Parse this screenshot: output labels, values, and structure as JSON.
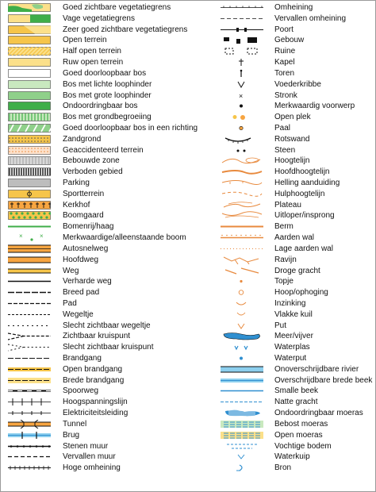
{
  "left_items": [
    {
      "label": "Goed zichtbare vegetatiegrens",
      "symbol": "veg-border-good-icon"
    },
    {
      "label": "Vage vegetatiegrens",
      "symbol": "veg-border-vague-icon"
    },
    {
      "label": "Zeer goed zichtbare vegetatiegrens",
      "symbol": "veg-border-very-good-icon"
    },
    {
      "label": "Open terrein",
      "symbol": "open-terrain-icon"
    },
    {
      "label": "Half open terrein",
      "symbol": "half-open-terrain-icon"
    },
    {
      "label": "Ruw open terrein",
      "symbol": "rough-open-terrain-icon"
    },
    {
      "label": "Goed doorloopbaar bos",
      "symbol": "runnable-forest-icon"
    },
    {
      "label": "Bos met lichte loophinder",
      "symbol": "forest-slow-running-icon"
    },
    {
      "label": "Bos met grote loophinder",
      "symbol": "forest-difficult-icon"
    },
    {
      "label": "Ondoordringbaar bos",
      "symbol": "impassable-forest-icon"
    },
    {
      "label": "Bos met grondbegroeiing",
      "symbol": "undergrowth-icon"
    },
    {
      "label": "Goed doorloopbaar bos in een richting",
      "symbol": "runnable-one-direction-icon"
    },
    {
      "label": "Zandgrond",
      "symbol": "sandy-ground-icon"
    },
    {
      "label": "Geaccidenteerd terrein",
      "symbol": "rough-terrain-icon"
    },
    {
      "label": "Bebouwde zone",
      "symbol": "built-up-area-icon"
    },
    {
      "label": "Verboden gebied",
      "symbol": "forbidden-area-icon"
    },
    {
      "label": "Parking",
      "symbol": "parking-icon"
    },
    {
      "label": "Sportterrein",
      "symbol": "sports-field-icon"
    },
    {
      "label": "Kerkhof",
      "symbol": "cemetery-icon"
    },
    {
      "label": "Boomgaard",
      "symbol": "orchard-icon"
    },
    {
      "label": "Bomenrij/haag",
      "symbol": "tree-row-icon"
    },
    {
      "label": "Merkwaardige/alleenstaande boom",
      "symbol": "special-tree-icon"
    },
    {
      "label": "Autosnelweg",
      "symbol": "motorway-icon"
    },
    {
      "label": "Hoofdweg",
      "symbol": "main-road-icon"
    },
    {
      "label": "Weg",
      "symbol": "road-icon"
    },
    {
      "label": "Verharde weg",
      "symbol": "paved-road-icon"
    },
    {
      "label": "Breed pad",
      "symbol": "wide-path-icon"
    },
    {
      "label": "Pad",
      "symbol": "path-icon"
    },
    {
      "label": "Wegeltje",
      "symbol": "small-path-icon"
    },
    {
      "label": "Slecht zichtbaar wegeltje",
      "symbol": "indistinct-path-icon"
    },
    {
      "label": "Zichtbaar kruispunt",
      "symbol": "visible-junction-icon"
    },
    {
      "label": "Slecht zichtbaar kruispunt",
      "symbol": "indistinct-junction-icon"
    },
    {
      "label": "Brandgang",
      "symbol": "firebreak-icon"
    },
    {
      "label": "Open brandgang",
      "symbol": "open-firebreak-icon"
    },
    {
      "label": "Brede brandgang",
      "symbol": "wide-firebreak-icon"
    },
    {
      "label": "Spoorweg",
      "symbol": "railway-icon"
    },
    {
      "label": "Hoogspanningslijn",
      "symbol": "power-line-icon"
    },
    {
      "label": "Elektriciteitsleiding",
      "symbol": "electric-line-icon"
    },
    {
      "label": "Tunnel",
      "symbol": "tunnel-icon"
    },
    {
      "label": "Brug",
      "symbol": "bridge-icon"
    },
    {
      "label": "Stenen muur",
      "symbol": "stone-wall-icon"
    },
    {
      "label": "Vervallen muur",
      "symbol": "ruined-wall-icon"
    },
    {
      "label": "Hoge omheining",
      "symbol": "high-fence-icon"
    }
  ],
  "right_items": [
    {
      "label": "Omheining",
      "symbol": "fence-icon"
    },
    {
      "label": "Vervallen omheining",
      "symbol": "ruined-fence-icon"
    },
    {
      "label": "Poort",
      "symbol": "gate-icon"
    },
    {
      "label": "Gebouw",
      "symbol": "building-icon"
    },
    {
      "label": "Ruine",
      "symbol": "ruin-icon"
    },
    {
      "label": "Kapel",
      "symbol": "chapel-icon"
    },
    {
      "label": "Toren",
      "symbol": "tower-icon"
    },
    {
      "label": "Voederkribbe",
      "symbol": "feeding-rack-icon"
    },
    {
      "label": "Stronk",
      "symbol": "stump-icon"
    },
    {
      "label": "Merkwaardig voorwerp",
      "symbol": "special-object-icon"
    },
    {
      "label": "Open plek",
      "symbol": "clearing-icon"
    },
    {
      "label": "Paal",
      "symbol": "post-icon"
    },
    {
      "label": "Rotswand",
      "symbol": "cliff-icon"
    },
    {
      "label": "Steen",
      "symbol": "boulder-icon"
    },
    {
      "label": "Hoogtelijn",
      "symbol": "contour-icon"
    },
    {
      "label": "Hoofdhoogtelijn",
      "symbol": "index-contour-icon"
    },
    {
      "label": "Helling aanduiding",
      "symbol": "slope-line-icon"
    },
    {
      "label": "Hulphoogtelijn",
      "symbol": "form-line-icon"
    },
    {
      "label": "Plateau",
      "symbol": "plateau-icon"
    },
    {
      "label": "Uitloper/insprong",
      "symbol": "spur-re-entrant-icon"
    },
    {
      "label": "Berm",
      "symbol": "bank-icon"
    },
    {
      "label": "Aarden wal",
      "symbol": "earth-wall-icon"
    },
    {
      "label": "Lage aarden wal",
      "symbol": "low-earth-wall-icon"
    },
    {
      "label": "Ravijn",
      "symbol": "ravine-icon"
    },
    {
      "label": "Droge gracht",
      "symbol": "dry-ditch-icon"
    },
    {
      "label": "Topje",
      "symbol": "knoll-icon"
    },
    {
      "label": "Hoop/ophoging",
      "symbol": "mound-icon"
    },
    {
      "label": "Inzinking",
      "symbol": "depression-icon"
    },
    {
      "label": "Vlakke kuil",
      "symbol": "shallow-pit-icon"
    },
    {
      "label": "Put",
      "symbol": "pit-icon"
    },
    {
      "label": "Meer/vijver",
      "symbol": "lake-icon"
    },
    {
      "label": "Waterplas",
      "symbol": "pond-icon"
    },
    {
      "label": "Waterput",
      "symbol": "water-well-icon"
    },
    {
      "label": "Onoverschrijdbare rivier",
      "symbol": "uncrossable-river-icon"
    },
    {
      "label": "Overschrijdbare brede beek",
      "symbol": "crossable-stream-icon"
    },
    {
      "label": "Smalle beek",
      "symbol": "narrow-stream-icon"
    },
    {
      "label": "Natte gracht",
      "symbol": "wet-ditch-icon"
    },
    {
      "label": "Ondoordringbaar moeras",
      "symbol": "impassable-marsh-icon"
    },
    {
      "label": "Bebost moeras",
      "symbol": "wooded-marsh-icon"
    },
    {
      "label": "Open moeras",
      "symbol": "open-marsh-icon"
    },
    {
      "label": "Vochtige bodem",
      "symbol": "damp-ground-icon"
    },
    {
      "label": "Waterkuip",
      "symbol": "water-tank-icon"
    },
    {
      "label": "Bron",
      "symbol": "spring-icon"
    }
  ],
  "colors": {
    "yellow": "#fbe08a",
    "yellowDeep": "#f6c54a",
    "green": "#3fae49",
    "greenLight": "#8fd08a",
    "greenPale": "#c9e9bf",
    "orange": "#f7a541",
    "brown": "#e88a3e",
    "blue": "#2f8fd0",
    "blueLight": "#8ccfee",
    "grey": "#bdbdbd",
    "black": "#111111"
  }
}
